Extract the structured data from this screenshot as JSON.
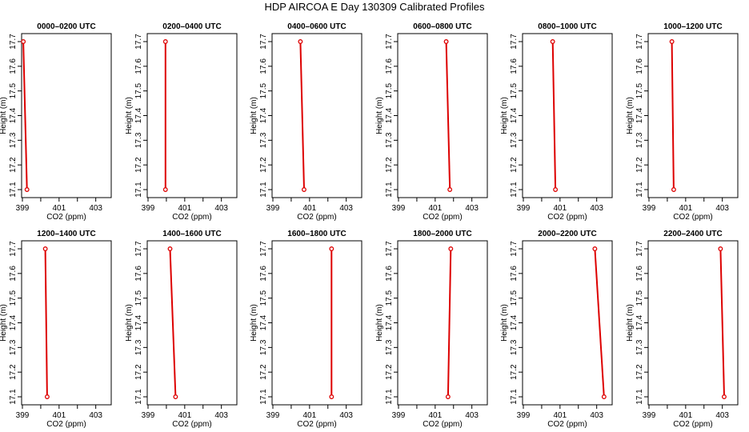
{
  "title": "HDP AIRCOA E  Day 130309  Calibrated Profiles",
  "chart_data": [
    {
      "type": "line",
      "title": "0000–0200 UTC",
      "xlabel": "CO2 (ppm)",
      "ylabel": "Height (m)",
      "xlim": [
        399,
        403.8
      ],
      "ylim": [
        17.1,
        17.7
      ],
      "xticks": [
        "399",
        "401",
        "403"
      ],
      "yticks": [
        "17.1",
        "17.2",
        "17.3",
        "17.4",
        "17.5",
        "17.6",
        "17.7"
      ],
      "series": [
        {
          "x": [
            399.05,
            399.25
          ],
          "y": [
            17.7,
            17.1
          ]
        }
      ]
    },
    {
      "type": "line",
      "title": "0200–0400 UTC",
      "xlabel": "CO2 (ppm)",
      "ylabel": "Height (m)",
      "xlim": [
        399,
        403.8
      ],
      "ylim": [
        17.1,
        17.7
      ],
      "xticks": [
        "399",
        "401",
        "403"
      ],
      "yticks": [
        "17.1",
        "17.2",
        "17.3",
        "17.4",
        "17.5",
        "17.6",
        "17.7"
      ],
      "series": [
        {
          "x": [
            399.95,
            399.95
          ],
          "y": [
            17.7,
            17.1
          ]
        }
      ]
    },
    {
      "type": "line",
      "title": "0400–0600 UTC",
      "xlabel": "CO2 (ppm)",
      "ylabel": "Height (m)",
      "xlim": [
        399,
        403.8
      ],
      "ylim": [
        17.1,
        17.7
      ],
      "xticks": [
        "399",
        "401",
        "403"
      ],
      "yticks": [
        "17.1",
        "17.2",
        "17.3",
        "17.4",
        "17.5",
        "17.6",
        "17.7"
      ],
      "series": [
        {
          "x": [
            400.5,
            400.7
          ],
          "y": [
            17.7,
            17.1
          ]
        }
      ]
    },
    {
      "type": "line",
      "title": "0600–0800 UTC",
      "xlabel": "CO2 (ppm)",
      "ylabel": "Height (m)",
      "xlim": [
        399,
        403.8
      ],
      "ylim": [
        17.1,
        17.7
      ],
      "xticks": [
        "399",
        "401",
        "403"
      ],
      "yticks": [
        "17.1",
        "17.2",
        "17.3",
        "17.4",
        "17.5",
        "17.6",
        "17.7"
      ],
      "series": [
        {
          "x": [
            401.6,
            401.8
          ],
          "y": [
            17.7,
            17.1
          ]
        }
      ]
    },
    {
      "type": "line",
      "title": "0800–1000 UTC",
      "xlabel": "CO2 (ppm)",
      "ylabel": "Height (m)",
      "xlim": [
        399,
        403.8
      ],
      "ylim": [
        17.1,
        17.7
      ],
      "xticks": [
        "399",
        "401",
        "403"
      ],
      "yticks": [
        "17.1",
        "17.2",
        "17.3",
        "17.4",
        "17.5",
        "17.6",
        "17.7"
      ],
      "series": [
        {
          "x": [
            400.6,
            400.75
          ],
          "y": [
            17.7,
            17.1
          ]
        }
      ]
    },
    {
      "type": "line",
      "title": "1000–1200 UTC",
      "xlabel": "CO2 (ppm)",
      "ylabel": "Height (m)",
      "xlim": [
        399,
        403.8
      ],
      "ylim": [
        17.1,
        17.7
      ],
      "xticks": [
        "399",
        "401",
        "403"
      ],
      "yticks": [
        "17.1",
        "17.2",
        "17.3",
        "17.4",
        "17.5",
        "17.6",
        "17.7"
      ],
      "series": [
        {
          "x": [
            400.25,
            400.35
          ],
          "y": [
            17.7,
            17.1
          ]
        }
      ]
    },
    {
      "type": "line",
      "title": "1200–1400 UTC",
      "xlabel": "CO2 (ppm)",
      "ylabel": "Height (m)",
      "xlim": [
        399,
        403.8
      ],
      "ylim": [
        17.1,
        17.7
      ],
      "xticks": [
        "399",
        "401",
        "403"
      ],
      "yticks": [
        "17.1",
        "17.2",
        "17.3",
        "17.4",
        "17.5",
        "17.6",
        "17.7"
      ],
      "series": [
        {
          "x": [
            400.25,
            400.35
          ],
          "y": [
            17.7,
            17.1
          ]
        }
      ]
    },
    {
      "type": "line",
      "title": "1400–1600 UTC",
      "xlabel": "CO2 (ppm)",
      "ylabel": "Height (m)",
      "xlim": [
        399,
        403.8
      ],
      "ylim": [
        17.1,
        17.7
      ],
      "xticks": [
        "399",
        "401",
        "403"
      ],
      "yticks": [
        "17.1",
        "17.2",
        "17.3",
        "17.4",
        "17.5",
        "17.6",
        "17.7"
      ],
      "series": [
        {
          "x": [
            400.2,
            400.5
          ],
          "y": [
            17.7,
            17.1
          ]
        }
      ]
    },
    {
      "type": "line",
      "title": "1600–1800 UTC",
      "xlabel": "CO2 (ppm)",
      "ylabel": "Height (m)",
      "xlim": [
        399,
        403.8
      ],
      "ylim": [
        17.1,
        17.7
      ],
      "xticks": [
        "399",
        "401",
        "403"
      ],
      "yticks": [
        "17.1",
        "17.2",
        "17.3",
        "17.4",
        "17.5",
        "17.6",
        "17.7"
      ],
      "series": [
        {
          "x": [
            402.2,
            402.2
          ],
          "y": [
            17.7,
            17.1
          ]
        }
      ]
    },
    {
      "type": "line",
      "title": "1800–2000 UTC",
      "xlabel": "CO2 (ppm)",
      "ylabel": "Height (m)",
      "xlim": [
        399,
        403.8
      ],
      "ylim": [
        17.1,
        17.7
      ],
      "xticks": [
        "399",
        "401",
        "403"
      ],
      "yticks": [
        "17.1",
        "17.2",
        "17.3",
        "17.4",
        "17.5",
        "17.6",
        "17.7"
      ],
      "series": [
        {
          "x": [
            401.85,
            401.7
          ],
          "y": [
            17.7,
            17.1
          ]
        }
      ]
    },
    {
      "type": "line",
      "title": "2000–2200 UTC",
      "xlabel": "CO2 (ppm)",
      "ylabel": "Height (m)",
      "xlim": [
        399,
        403.8
      ],
      "ylim": [
        17.1,
        17.7
      ],
      "xticks": [
        "399",
        "401",
        "403"
      ],
      "yticks": [
        "17.1",
        "17.2",
        "17.3",
        "17.4",
        "17.5",
        "17.6",
        "17.7"
      ],
      "series": [
        {
          "x": [
            402.9,
            403.4
          ],
          "y": [
            17.7,
            17.1
          ]
        }
      ]
    },
    {
      "type": "line",
      "title": "2200–2400 UTC",
      "xlabel": "CO2 (ppm)",
      "ylabel": "Height (m)",
      "xlim": [
        399,
        403.8
      ],
      "ylim": [
        17.1,
        17.7
      ],
      "xticks": [
        "399",
        "401",
        "403"
      ],
      "yticks": [
        "17.1",
        "17.2",
        "17.3",
        "17.4",
        "17.5",
        "17.6",
        "17.7"
      ],
      "series": [
        {
          "x": [
            402.9,
            403.1
          ],
          "y": [
            17.7,
            17.1
          ]
        }
      ]
    }
  ],
  "colors": {
    "series": "#dd0000",
    "axis": "#000000"
  }
}
